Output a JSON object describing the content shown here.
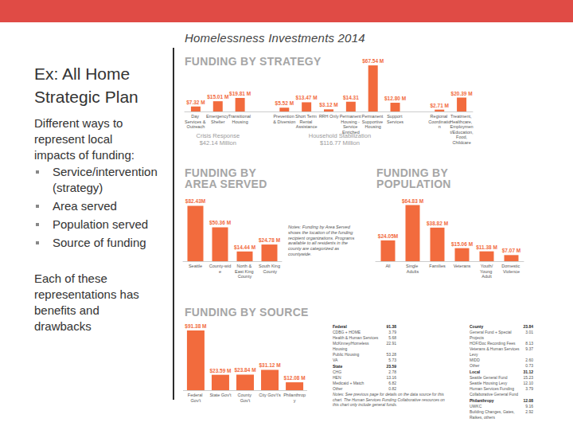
{
  "slide": {
    "title": "Ex: All Home Strategic Plan",
    "intro": "Different ways to represent local impacts of funding:",
    "bullets": [
      "Service/intervention (strategy)",
      "Area served",
      "Population served",
      "Source of funding"
    ],
    "closing": "Each of these representations has benefits and drawbacks"
  },
  "panel_title": "Homelessness Investments 2014",
  "chart_data": [
    {
      "type": "bar",
      "title": "FUNDING BY STRATEGY",
      "categories": [
        "Day Services & Outreach",
        "Emergency Shelter",
        "Transitional Housing",
        null,
        "Prevention & Diversion",
        "Short Term Rental Assistance",
        "RRH Only",
        "Permanent Housing - Service Enriched",
        "Permanent Supportive Housing",
        "Support Services",
        null,
        "Regional Coordination",
        "Treatment, Healthcare, Employment/Education, Food, Childcare"
      ],
      "values": [
        7.32,
        15.01,
        19.81,
        null,
        5.52,
        13.47,
        3.12,
        14.31,
        67.54,
        12.8,
        null,
        2.71,
        20.39
      ],
      "value_labels": [
        "$7.32 M",
        "$15.01 M",
        "$19.81 M",
        null,
        "$5.52 M",
        "$13.47 M",
        "$3.12 M",
        "$14.31",
        "$67.54 M",
        "$12.80 M",
        null,
        "$2.71 M",
        "$20.39 M"
      ],
      "color": "#f26b3d",
      "ylim": [
        0,
        70
      ],
      "grid": false,
      "tick_labels": "x",
      "data_labels": true,
      "annotations": [
        {
          "label": "Crisis Response",
          "total": "$42.14 Million",
          "from": "Day Services & Outreach",
          "to": "Transitional Housing"
        },
        {
          "label": "Household Stabilization",
          "total": "$116.77 Million",
          "from": "Prevention & Diversion",
          "to": "Support Services"
        }
      ]
    },
    {
      "type": "bar",
      "title": "FUNDING BY AREA SERVED",
      "categories": [
        "Seattle",
        "County-wide",
        "North & East King County",
        "South King County"
      ],
      "values": [
        82.43,
        50.36,
        14.44,
        24.78
      ],
      "value_labels": [
        "$82.43M",
        "$50.36 M",
        "$14.44 M",
        "$24.78 M"
      ],
      "color": "#f26b3d",
      "ylim": [
        0,
        90
      ],
      "grid": false,
      "tick_labels": "x",
      "data_labels": true,
      "note": "Notes: Funding by Area Served shows the location of the funding recipient organizations. Programs available to all residents in the county are categorized as countywide."
    },
    {
      "type": "bar",
      "title": "FUNDING BY POPULATION",
      "categories": [
        "All",
        "Single Adults",
        "Families",
        "Veterans",
        "Youth/Young Adult",
        "Domestic Violence"
      ],
      "values": [
        24.05,
        64.83,
        38.82,
        15.06,
        11.38,
        7.07
      ],
      "value_labels": [
        "$24.05M",
        "$64.83 M",
        "$38.82 M",
        "$15.06 M",
        "$11.38 M",
        "$7.07 M"
      ],
      "color": "#f26b3d",
      "ylim": [
        0,
        70
      ],
      "grid": false,
      "tick_labels": "x",
      "data_labels": true
    },
    {
      "type": "bar",
      "title": "FUNDING BY SOURCE",
      "categories": [
        "Federal Gov't",
        "State Gov't",
        "County Gov't",
        "City Gov't's",
        "Philanthropy"
      ],
      "values": [
        91.38,
        23.59,
        23.84,
        31.12,
        12.08
      ],
      "value_labels": [
        "$91.38 M",
        "$23.59 M",
        "$23.84 M",
        "$31.12 M",
        "$12.08 M"
      ],
      "color": "#f26b3d",
      "ylim": [
        0,
        100
      ],
      "grid": false,
      "tick_labels": "x",
      "data_labels": true
    }
  ],
  "source_breakdown": {
    "columns": [
      [
        {
          "name": "Federal",
          "total": "91.38",
          "items": [
            {
              "name": "CDBG + HOME",
              "value": "3.79"
            },
            {
              "name": "Health & Human Services",
              "value": "5.68"
            },
            {
              "name": "McKinney/Homeless Housing",
              "value": "22.91"
            },
            {
              "name": "Public Housing",
              "value": "53.28"
            },
            {
              "name": "VA",
              "value": "5.73"
            }
          ]
        },
        {
          "name": "State",
          "total": "23.59",
          "items": [
            {
              "name": "CHG",
              "value": "2.78"
            },
            {
              "name": "HEN",
              "value": "13.16"
            },
            {
              "name": "Medicaid + Match",
              "value": "6.82"
            },
            {
              "name": "Other",
              "value": "0.82"
            }
          ]
        }
      ],
      [
        {
          "name": "County",
          "total": "23.84",
          "items": [
            {
              "name": "General Fund + Special Projects",
              "value": "3.01"
            },
            {
              "name": "HOF/Doc Recording Fees",
              "value": "8.13"
            },
            {
              "name": "Veterans & Human Services Levy",
              "value": "9.37"
            },
            {
              "name": "MIDD",
              "value": "2.60"
            },
            {
              "name": "Other",
              "value": "0.73"
            }
          ]
        },
        {
          "name": "Local",
          "total": "31.12",
          "items": [
            {
              "name": "Seattle General Fund",
              "value": "15.23"
            },
            {
              "name": "Seattle Housing Levy",
              "value": "12.10"
            },
            {
              "name": "Human Services Funding Collaborative General Fund",
              "value": "3.79"
            }
          ]
        },
        {
          "name": "Philanthropy",
          "total": "12.08",
          "items": [
            {
              "name": "UWKC",
              "value": "9.16"
            },
            {
              "name": "Building Changes, Gates, Raikes, others",
              "value": "2.92"
            }
          ]
        }
      ]
    ],
    "note": "Notes: See previous page for details on the data source for this chart. The Human Services Funding Collaborative resources on this chart only include general funds."
  }
}
